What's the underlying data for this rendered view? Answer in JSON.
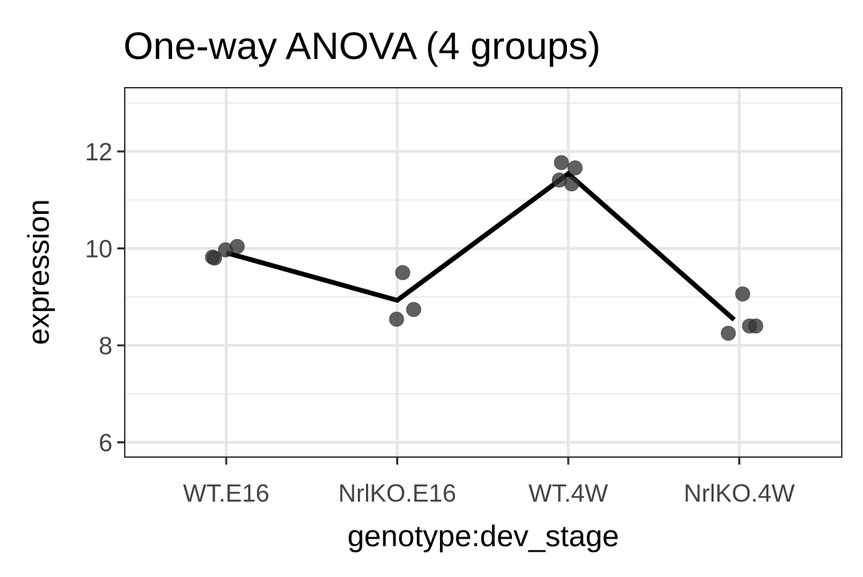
{
  "chart_data": {
    "type": "scatter",
    "title": "One-way ANOVA (4 groups)",
    "xlabel": "genotype:dev_stage",
    "ylabel": "expression",
    "categories": [
      "WT.E16",
      "NrlKO.E16",
      "WT.4W",
      "NrlKO.4W"
    ],
    "yticks": [
      "6",
      "8",
      "10",
      "12"
    ],
    "ylim": [
      5.7,
      13.3
    ],
    "grid": true,
    "points": [
      {
        "category": "WT.E16",
        "y": 9.82
      },
      {
        "category": "WT.E16",
        "y": 9.8
      },
      {
        "category": "WT.E16",
        "y": 9.97
      },
      {
        "category": "WT.E16",
        "y": 10.04
      },
      {
        "category": "NrlKO.E16",
        "y": 9.5
      },
      {
        "category": "NrlKO.E16",
        "y": 8.54
      },
      {
        "category": "NrlKO.E16",
        "y": 8.74
      },
      {
        "category": "WT.4W",
        "y": 11.77
      },
      {
        "category": "WT.4W",
        "y": 11.41
      },
      {
        "category": "WT.4W",
        "y": 11.66
      },
      {
        "category": "WT.4W",
        "y": 11.33
      },
      {
        "category": "NrlKO.4W",
        "y": 9.06
      },
      {
        "category": "NrlKO.4W",
        "y": 8.25
      },
      {
        "category": "NrlKO.4W",
        "y": 8.4
      },
      {
        "category": "NrlKO.4W",
        "y": 8.4
      }
    ],
    "means": [
      9.91,
      8.93,
      11.54,
      8.53
    ],
    "point_color": "#333333",
    "line_color": "#000000"
  }
}
